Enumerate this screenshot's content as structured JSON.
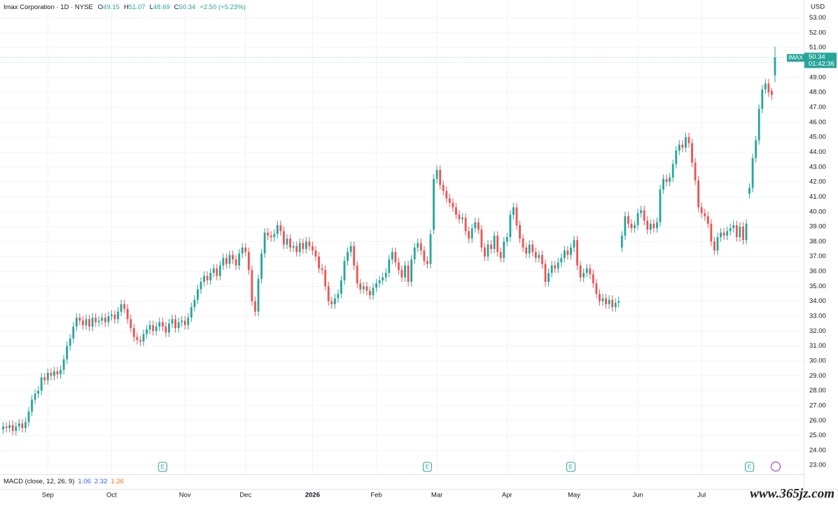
{
  "header": {
    "name": "Imax Corporation · 1D · NYSE",
    "ohlc": [
      {
        "label": "O",
        "value": "49.15"
      },
      {
        "label": "H",
        "value": "51.07"
      },
      {
        "label": "L",
        "value": "48.69"
      },
      {
        "label": "C",
        "value": "50.34"
      }
    ],
    "change": "+2.50 (+5.23%)"
  },
  "price_tag": {
    "symbol": "IMAX",
    "price": "50.34",
    "countdown": "01:42:36"
  },
  "currency": "USD",
  "macd": {
    "label": "MACD (close, 12, 26, 9)",
    "values": [
      {
        "text": "1.06",
        "color": "#2962ff"
      },
      {
        "text": "2.32",
        "color": "#2962ff"
      },
      {
        "text": "1.26",
        "color": "#ff6d00"
      }
    ]
  },
  "events": [
    {
      "label": "E",
      "index": 50
    },
    {
      "label": "E",
      "index": 133
    },
    {
      "label": "E",
      "index": 178
    },
    {
      "label": "E",
      "index": 234
    }
  ],
  "watermark": "www.365jz.com",
  "chart_data": {
    "type": "candlestick",
    "up_color": "#26a69a",
    "down_color": "#ef5350",
    "xlim": [
      -1,
      251
    ],
    "ylim": [
      22.4,
      54.2
    ],
    "xticks": [
      {
        "value": 14,
        "label": "Sep"
      },
      {
        "value": 34,
        "label": "Oct"
      },
      {
        "value": 57,
        "label": "Nov"
      },
      {
        "value": 76,
        "label": "Dec"
      },
      {
        "value": 97,
        "label": "2026"
      },
      {
        "value": 117,
        "label": "Feb"
      },
      {
        "value": 136,
        "label": "Mar"
      },
      {
        "value": 158,
        "label": "Apr"
      },
      {
        "value": 179,
        "label": "May"
      },
      {
        "value": 199,
        "label": "Jun"
      },
      {
        "value": 219,
        "label": "Jul"
      }
    ],
    "yticks": [
      {
        "value": 23,
        "label": "23.00"
      },
      {
        "value": 24,
        "label": "24.00"
      },
      {
        "value": 25,
        "label": "25.00"
      },
      {
        "value": 26,
        "label": "26.00"
      },
      {
        "value": 27,
        "label": "27.00"
      },
      {
        "value": 28,
        "label": "28.00"
      },
      {
        "value": 29,
        "label": "29.00"
      },
      {
        "value": 30,
        "label": "30.00"
      },
      {
        "value": 31,
        "label": "31.00"
      },
      {
        "value": 32,
        "label": "32.00"
      },
      {
        "value": 33,
        "label": "33.00"
      },
      {
        "value": 34,
        "label": "34.00"
      },
      {
        "value": 35,
        "label": "35.00"
      },
      {
        "value": 36,
        "label": "36.00"
      },
      {
        "value": 37,
        "label": "37.00"
      },
      {
        "value": 38,
        "label": "38.00"
      },
      {
        "value": 39,
        "label": "39.00"
      },
      {
        "value": 40,
        "label": "40.00"
      },
      {
        "value": 41,
        "label": "41.00"
      },
      {
        "value": 42,
        "label": "42.00"
      },
      {
        "value": 43,
        "label": "43.00"
      },
      {
        "value": 44,
        "label": "44.00"
      },
      {
        "value": 45,
        "label": "45.00"
      },
      {
        "value": 46,
        "label": "46.00"
      },
      {
        "value": 47,
        "label": "47.00"
      },
      {
        "value": 48,
        "label": "48.00"
      },
      {
        "value": 49,
        "label": "49.00"
      },
      {
        "value": 50,
        "label": "50.00"
      },
      {
        "value": 51,
        "label": "51.00"
      },
      {
        "value": 52,
        "label": "52.00"
      },
      {
        "value": 53,
        "label": "53.00"
      }
    ],
    "grid": true,
    "open": [
      25.4,
      25.6,
      25.5,
      25.7,
      25.3,
      25.6,
      25.8,
      25.5,
      25.9,
      26.6,
      27.4,
      27.8,
      28.0,
      28.9,
      28.7,
      29.2,
      29.0,
      29.3,
      29.1,
      29.4,
      30.1,
      31.0,
      31.5,
      32.3,
      32.9,
      32.7,
      32.4,
      32.8,
      32.3,
      32.9,
      32.6,
      32.7,
      32.9,
      32.6,
      33.0,
      33.1,
      32.8,
      33.3,
      33.8,
      33.5,
      32.8,
      32.2,
      31.6,
      31.4,
      31.3,
      31.8,
      32.1,
      32.4,
      32.0,
      32.3,
      32.6,
      32.3,
      31.9,
      32.5,
      32.8,
      32.2,
      32.6,
      32.7,
      32.4,
      32.9,
      33.6,
      34.1,
      34.8,
      35.3,
      35.7,
      35.4,
      35.9,
      36.2,
      35.7,
      36.4,
      36.9,
      36.5,
      37.1,
      36.8,
      36.4,
      37.2,
      37.6,
      37.3,
      36.1,
      34.0,
      33.3,
      35.5,
      37.2,
      38.6,
      38.4,
      38.3,
      38.5,
      39.1,
      38.7,
      37.8,
      38.2,
      37.6,
      37.7,
      37.3,
      37.9,
      37.5,
      38.0,
      37.7,
      37.4,
      37.0,
      36.2,
      36.1,
      35.0,
      34.0,
      33.8,
      34.2,
      34.5,
      35.4,
      36.7,
      37.3,
      37.7,
      36.4,
      35.2,
      34.8,
      35.0,
      34.7,
      34.4,
      34.9,
      35.2,
      35.4,
      35.6,
      35.9,
      36.8,
      37.3,
      36.6,
      36.1,
      35.6,
      36.4,
      35.3,
      36.8,
      37.6,
      37.9,
      37.4,
      36.7,
      36.5,
      38.8,
      42.2,
      42.8,
      41.8,
      41.4,
      40.9,
      40.6,
      40.3,
      39.8,
      39.5,
      39.6,
      38.7,
      38.2,
      38.9,
      39.3,
      38.8,
      37.6,
      37.0,
      37.8,
      37.5,
      38.4,
      37.3,
      36.9,
      38.0,
      38.3,
      39.8,
      40.3,
      39.1,
      38.2,
      37.6,
      37.2,
      37.8,
      37.3,
      36.9,
      37.1,
      36.5,
      35.3,
      35.9,
      36.4,
      36.2,
      36.6,
      36.9,
      37.4,
      37.1,
      37.6,
      38.1,
      36.4,
      35.6,
      35.9,
      36.2,
      35.8,
      35.2,
      34.5,
      34.0,
      34.2,
      33.8,
      34.1,
      33.6,
      33.9,
      37.6,
      38.4,
      39.7,
      39.2,
      38.9,
      39.1,
      39.9,
      40.1,
      39.4,
      38.8,
      39.2,
      38.9,
      39.3,
      41.5,
      42.2,
      42.0,
      42.3,
      43.2,
      44.1,
      44.5,
      44.3,
      45.0,
      44.6,
      43.3,
      42.1,
      40.3,
      39.9,
      39.7,
      39.2,
      38.0,
      37.4,
      38.3,
      38.6,
      38.4,
      38.7,
      38.9,
      39.1,
      38.3,
      39.0,
      38.1,
      41.2,
      41.6,
      43.6,
      44.8,
      46.9,
      48.2,
      48.6,
      48.1,
      49.15
    ],
    "high": [
      25.9,
      25.9,
      26.0,
      26.0,
      25.9,
      26.1,
      26.1,
      26.2,
      26.9,
      27.7,
      28.1,
      28.3,
      29.2,
      29.2,
      29.5,
      29.5,
      29.6,
      29.6,
      29.7,
      30.4,
      31.3,
      31.8,
      32.6,
      33.2,
      33.2,
      33.0,
      33.1,
      33.1,
      33.2,
      33.2,
      33.0,
      33.2,
      33.2,
      33.3,
      33.4,
      33.4,
      33.6,
      34.1,
      34.1,
      33.8,
      33.1,
      32.5,
      31.9,
      31.7,
      32.1,
      32.4,
      32.7,
      32.7,
      32.6,
      32.9,
      32.9,
      32.6,
      32.8,
      33.1,
      33.1,
      32.9,
      33.0,
      33.0,
      33.2,
      33.9,
      34.4,
      35.1,
      35.6,
      36.0,
      36.0,
      36.2,
      36.5,
      36.5,
      36.7,
      37.2,
      37.2,
      37.4,
      37.4,
      37.1,
      37.5,
      37.9,
      37.9,
      37.6,
      36.4,
      34.3,
      35.8,
      37.5,
      38.9,
      38.9,
      38.7,
      38.8,
      39.4,
      39.4,
      39.0,
      38.5,
      38.5,
      38.0,
      38.0,
      38.2,
      38.2,
      38.3,
      38.3,
      38.0,
      37.7,
      37.3,
      36.5,
      36.4,
      35.3,
      34.3,
      34.5,
      34.8,
      35.7,
      37.0,
      37.6,
      38.0,
      38.0,
      36.7,
      35.5,
      35.3,
      35.3,
      35.0,
      35.2,
      35.5,
      35.7,
      35.9,
      36.2,
      37.1,
      37.6,
      37.6,
      36.9,
      36.4,
      36.7,
      36.7,
      37.1,
      37.9,
      38.2,
      38.2,
      37.7,
      37.0,
      38.8,
      42.5,
      43.1,
      43.1,
      42.1,
      41.7,
      41.2,
      40.9,
      40.6,
      40.1,
      39.9,
      39.9,
      39.0,
      39.2,
      39.6,
      39.6,
      39.1,
      37.9,
      38.1,
      38.1,
      38.7,
      38.7,
      37.6,
      38.3,
      38.6,
      40.1,
      40.6,
      40.6,
      39.4,
      38.5,
      37.9,
      38.1,
      38.1,
      37.6,
      37.4,
      37.4,
      36.8,
      36.2,
      36.7,
      36.7,
      36.9,
      37.2,
      37.7,
      37.7,
      37.9,
      38.4,
      38.4,
      36.7,
      36.2,
      36.5,
      36.5,
      36.1,
      35.5,
      34.8,
      34.5,
      34.5,
      34.4,
      34.4,
      34.2,
      34.3,
      38.7,
      40.0,
      40.0,
      39.5,
      39.4,
      40.2,
      40.4,
      40.4,
      39.7,
      39.5,
      39.5,
      39.6,
      41.8,
      42.5,
      42.5,
      42.6,
      43.5,
      44.4,
      44.8,
      44.8,
      45.3,
      45.3,
      44.9,
      43.6,
      42.4,
      40.6,
      40.2,
      40.0,
      39.5,
      38.3,
      38.6,
      38.9,
      38.9,
      39.0,
      39.2,
      39.4,
      39.4,
      39.3,
      39.3,
      39.5,
      41.9,
      43.9,
      45.1,
      47.2,
      48.5,
      48.9,
      48.9,
      48.3,
      51.07
    ],
    "low": [
      25.1,
      25.2,
      25.2,
      25.0,
      25.0,
      25.3,
      25.2,
      25.2,
      25.6,
      26.3,
      27.1,
      27.5,
      27.7,
      28.4,
      28.4,
      28.7,
      28.7,
      28.8,
      28.8,
      29.1,
      29.8,
      30.7,
      31.2,
      32.0,
      32.4,
      32.1,
      32.1,
      32.0,
      32.0,
      32.3,
      32.3,
      32.4,
      32.3,
      32.3,
      32.7,
      32.5,
      32.5,
      33.0,
      33.2,
      32.5,
      31.9,
      31.3,
      31.1,
      31.0,
      31.0,
      31.5,
      31.8,
      31.7,
      31.7,
      32.0,
      32.0,
      31.6,
      31.6,
      32.2,
      31.9,
      31.9,
      32.3,
      32.1,
      32.1,
      32.6,
      33.3,
      33.8,
      34.5,
      35.0,
      35.1,
      35.1,
      35.6,
      35.4,
      35.4,
      36.1,
      36.2,
      36.2,
      36.5,
      36.1,
      36.1,
      36.9,
      37.0,
      35.8,
      33.7,
      33.0,
      33.0,
      35.2,
      36.9,
      38.1,
      38.0,
      38.0,
      38.2,
      38.4,
      37.5,
      37.5,
      37.3,
      37.3,
      37.0,
      37.0,
      37.2,
      37.2,
      37.4,
      37.1,
      36.7,
      35.9,
      35.8,
      34.7,
      33.7,
      33.5,
      33.5,
      33.9,
      34.2,
      35.1,
      36.4,
      37.0,
      36.1,
      34.9,
      34.5,
      34.5,
      34.4,
      34.1,
      34.1,
      34.6,
      34.9,
      35.1,
      35.3,
      35.6,
      36.5,
      36.3,
      35.8,
      35.3,
      35.3,
      35.0,
      35.0,
      36.5,
      37.3,
      37.1,
      36.4,
      36.2,
      36.2,
      38.5,
      41.9,
      41.5,
      41.1,
      40.6,
      40.3,
      40.0,
      39.5,
      39.2,
      39.2,
      38.4,
      37.9,
      37.9,
      38.6,
      38.5,
      37.3,
      36.7,
      36.7,
      37.2,
      37.2,
      37.0,
      36.6,
      36.6,
      37.7,
      38.0,
      39.5,
      38.8,
      37.9,
      37.3,
      36.9,
      36.9,
      37.0,
      36.6,
      36.6,
      36.2,
      35.0,
      35.0,
      35.6,
      35.9,
      35.9,
      36.3,
      36.6,
      36.8,
      36.8,
      37.3,
      36.1,
      35.3,
      35.3,
      35.6,
      35.5,
      34.9,
      34.2,
      33.7,
      33.7,
      33.5,
      33.5,
      33.3,
      33.3,
      33.6,
      37.3,
      38.1,
      38.9,
      38.6,
      38.6,
      38.8,
      39.6,
      39.1,
      38.5,
      38.5,
      38.6,
      38.6,
      39.0,
      41.2,
      41.7,
      41.7,
      42.0,
      42.9,
      43.8,
      44.0,
      44.0,
      44.3,
      43.0,
      41.8,
      40.0,
      39.6,
      39.4,
      38.9,
      37.7,
      37.1,
      37.1,
      38.0,
      38.1,
      38.1,
      38.4,
      38.6,
      38.0,
      38.0,
      37.8,
      37.8,
      40.9,
      41.3,
      43.3,
      44.5,
      46.6,
      47.9,
      47.7,
      47.5,
      48.69
    ],
    "close": [
      25.6,
      25.5,
      25.7,
      25.3,
      25.6,
      25.8,
      25.5,
      25.9,
      26.6,
      27.4,
      27.8,
      28.0,
      28.9,
      28.7,
      29.2,
      29.0,
      29.3,
      29.1,
      29.4,
      30.1,
      31.0,
      31.5,
      32.3,
      32.9,
      32.7,
      32.4,
      32.8,
      32.3,
      32.9,
      32.6,
      32.7,
      32.9,
      32.6,
      33.0,
      33.1,
      32.8,
      33.3,
      33.8,
      33.5,
      32.8,
      32.2,
      31.6,
      31.4,
      31.3,
      31.8,
      32.1,
      32.4,
      32.0,
      32.3,
      32.6,
      32.3,
      31.9,
      32.5,
      32.8,
      32.2,
      32.6,
      32.7,
      32.4,
      32.9,
      33.6,
      34.1,
      34.8,
      35.3,
      35.7,
      35.4,
      35.9,
      36.2,
      35.7,
      36.4,
      36.9,
      36.5,
      37.1,
      36.8,
      36.4,
      37.2,
      37.6,
      37.3,
      36.1,
      34.0,
      33.3,
      35.5,
      37.2,
      38.6,
      38.4,
      38.3,
      38.5,
      39.1,
      38.7,
      37.8,
      38.2,
      37.6,
      37.7,
      37.3,
      37.9,
      37.5,
      38.0,
      37.7,
      37.4,
      37.0,
      36.2,
      36.1,
      35.0,
      34.0,
      33.8,
      34.2,
      34.5,
      35.4,
      36.7,
      37.3,
      37.7,
      36.4,
      35.2,
      34.8,
      35.0,
      34.7,
      34.4,
      34.9,
      35.2,
      35.4,
      35.6,
      35.9,
      36.8,
      37.3,
      36.6,
      36.1,
      35.6,
      36.4,
      35.3,
      36.8,
      37.6,
      37.9,
      37.4,
      36.7,
      36.5,
      38.5,
      42.2,
      42.8,
      41.8,
      41.4,
      40.9,
      40.6,
      40.3,
      39.8,
      39.5,
      39.6,
      38.7,
      38.2,
      38.9,
      39.3,
      38.8,
      37.6,
      37.0,
      37.8,
      37.5,
      38.4,
      37.3,
      36.9,
      38.0,
      38.3,
      39.8,
      40.3,
      39.1,
      38.2,
      37.6,
      37.2,
      37.8,
      37.3,
      36.9,
      37.1,
      36.5,
      35.3,
      35.9,
      36.4,
      36.2,
      36.6,
      36.9,
      37.4,
      37.1,
      37.6,
      38.1,
      36.4,
      35.6,
      35.9,
      36.2,
      35.8,
      35.2,
      34.5,
      34.0,
      34.2,
      33.8,
      34.1,
      33.6,
      33.9,
      34.0,
      38.4,
      39.7,
      39.2,
      38.9,
      39.1,
      39.9,
      40.1,
      39.4,
      38.8,
      39.2,
      38.9,
      39.3,
      41.5,
      42.2,
      42.0,
      42.3,
      43.2,
      44.1,
      44.5,
      44.3,
      45.0,
      44.6,
      43.3,
      42.1,
      40.3,
      39.9,
      39.7,
      39.2,
      38.0,
      37.4,
      38.3,
      38.6,
      38.4,
      38.7,
      38.9,
      39.1,
      38.3,
      39.0,
      38.1,
      39.2,
      41.6,
      43.6,
      44.8,
      46.9,
      48.2,
      48.6,
      48.0,
      47.84,
      50.34
    ]
  }
}
